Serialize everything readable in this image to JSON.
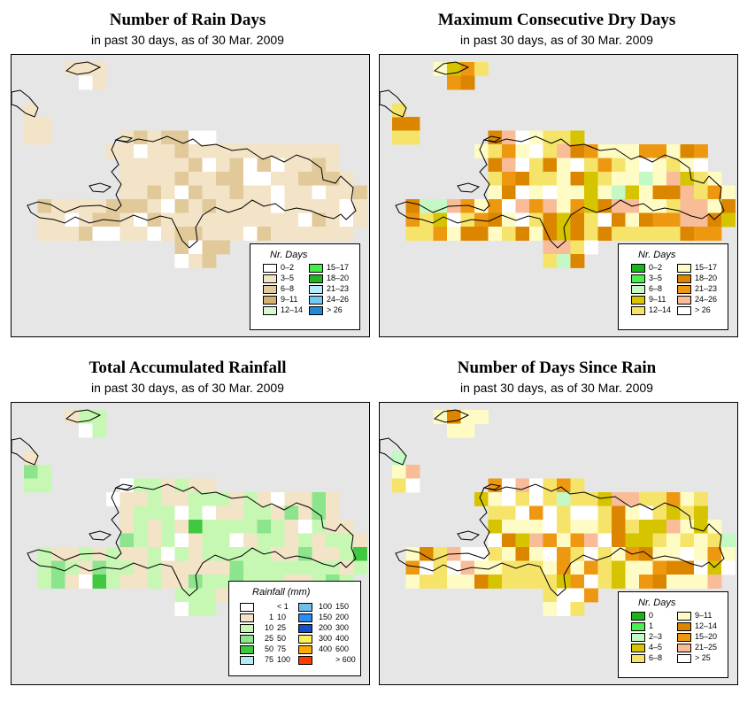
{
  "as_of": "30 Mar. 2009",
  "panels": [
    {
      "id": "rain-days",
      "title": "Number of Rain Days",
      "subtitle": "in past 30 days, as of  30 Mar. 2009",
      "legend": {
        "title": "Nr. Days",
        "classes": [
          {
            "label": "0–2",
            "color": "#ffffff"
          },
          {
            "label": "3–5",
            "color": "#f3e3c7"
          },
          {
            "label": "6–8",
            "color": "#e1c99a"
          },
          {
            "label": "9–11",
            "color": "#d4b070"
          },
          {
            "label": "12–14",
            "color": "#d8f8d0"
          },
          {
            "label": "15–17",
            "color": "#44ee44"
          },
          {
            "label": "18–20",
            "color": "#22b422"
          },
          {
            "label": "21–23",
            "color": "#b8ecfa"
          },
          {
            "label": "24–26",
            "color": "#72c8f4"
          },
          {
            "label": "> 26",
            "color": "#1e8cd4"
          }
        ]
      }
    },
    {
      "id": "dry-days",
      "title": "Maximum Consecutive Dry Days",
      "subtitle": "in past 30 days, as of  30 Mar. 2009",
      "legend": {
        "title": "Nr. Days",
        "classes": [
          {
            "label": "0–2",
            "color": "#1cb41c"
          },
          {
            "label": "3–5",
            "color": "#4cf04c"
          },
          {
            "label": "6–8",
            "color": "#c4f8c4"
          },
          {
            "label": "9–11",
            "color": "#d6c400"
          },
          {
            "label": "12–14",
            "color": "#f6e46a"
          },
          {
            "label": "15–17",
            "color": "#fefcc4"
          },
          {
            "label": "18–20",
            "color": "#dc8600"
          },
          {
            "label": "21–23",
            "color": "#ee9812"
          },
          {
            "label": "24–26",
            "color": "#f8bc98"
          },
          {
            "label": "> 26",
            "color": "#ffffff"
          }
        ]
      }
    },
    {
      "id": "rainfall",
      "title": "Total Accumulated Rainfall",
      "subtitle": "in past 30 days, as of  30 Mar. 2009",
      "legend": {
        "title": "Rainfall (mm)",
        "classes": [
          {
            "lo": "",
            "hi": "< 1",
            "color": "#ffffff"
          },
          {
            "lo": "1",
            "hi": "10",
            "color": "#f3e3c7"
          },
          {
            "lo": "10",
            "hi": "25",
            "color": "#c6f8b4"
          },
          {
            "lo": "25",
            "hi": "50",
            "color": "#8ce48c"
          },
          {
            "lo": "50",
            "hi": "75",
            "color": "#40c840"
          },
          {
            "lo": "75",
            "hi": "100",
            "color": "#b4ecf6"
          },
          {
            "lo": "100",
            "hi": "150",
            "color": "#72bcf0"
          },
          {
            "lo": "150",
            "hi": "200",
            "color": "#2c8cf0"
          },
          {
            "lo": "200",
            "hi": "300",
            "color": "#1450c8"
          },
          {
            "lo": "300",
            "hi": "400",
            "color": "#fcf05a"
          },
          {
            "lo": "400",
            "hi": "600",
            "color": "#ffaa00"
          },
          {
            "lo": "",
            "hi": "> 600",
            "color": "#ff3c00"
          }
        ]
      }
    },
    {
      "id": "since-rain",
      "title": "Number of Days Since Rain",
      "subtitle": "in past 30 days, as of  30 Mar. 2009",
      "legend": {
        "title": "Nr. Days",
        "classes": [
          {
            "label": "0",
            "color": "#1cb41c"
          },
          {
            "label": "1",
            "color": "#4cf04c"
          },
          {
            "label": "2–3",
            "color": "#c4f8c4"
          },
          {
            "label": "4–5",
            "color": "#d6c400"
          },
          {
            "label": "6–8",
            "color": "#f6e46a"
          },
          {
            "label": "9–11",
            "color": "#fefcc4"
          },
          {
            "label": "12–14",
            "color": "#dc8600"
          },
          {
            "label": "15–20",
            "color": "#ee9812"
          },
          {
            "label": "21–25",
            "color": "#f8bc98"
          },
          {
            "label": "> 25",
            "color": "#ffffff"
          }
        ]
      }
    }
  ]
}
